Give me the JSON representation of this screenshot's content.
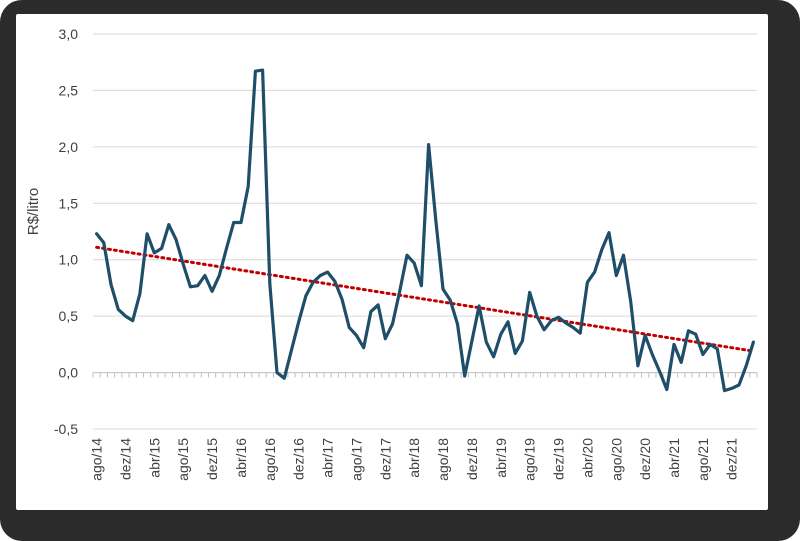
{
  "chart_data": {
    "type": "line",
    "title": "",
    "xlabel": "",
    "ylabel": "R$/litro",
    "ylim": [
      -0.5,
      3.0
    ],
    "y_ticks": [
      "3,0",
      "2,5",
      "2,0",
      "1,5",
      "1,0",
      "0,5",
      "0,0",
      "-0,5"
    ],
    "x_tick_labels": [
      "ago/14",
      "dez/14",
      "abr/15",
      "ago/15",
      "dez/15",
      "abr/16",
      "ago/16",
      "dez/16",
      "abr/17",
      "ago/17",
      "dez/17",
      "abr/18",
      "ago/18",
      "dez/18",
      "abr/19",
      "ago/19",
      "dez/19",
      "abr/20",
      "ago/20",
      "dez/20",
      "abr/21",
      "ago/21",
      "dez/21"
    ],
    "grid": "horizontal",
    "legend": "none",
    "series": [
      {
        "color": "#1f4e68",
        "values": [
          1.23,
          1.15,
          0.78,
          0.56,
          0.5,
          0.46,
          0.7,
          1.23,
          1.06,
          1.1,
          1.31,
          1.18,
          0.96,
          0.76,
          0.77,
          0.86,
          0.72,
          0.86,
          1.1,
          1.33,
          1.33,
          1.65,
          2.67,
          2.68,
          0.79,
          0.0,
          -0.05,
          0.2,
          0.45,
          0.68,
          0.8,
          0.86,
          0.89,
          0.81,
          0.65,
          0.4,
          0.33,
          0.22,
          0.54,
          0.6,
          0.3,
          0.43,
          0.72,
          1.04,
          0.97,
          0.77,
          2.02,
          1.35,
          0.74,
          0.64,
          0.43,
          -0.03,
          0.28,
          0.59,
          0.27,
          0.14,
          0.34,
          0.45,
          0.17,
          0.28,
          0.71,
          0.5,
          0.38,
          0.46,
          0.49,
          0.44,
          0.4,
          0.35,
          0.8,
          0.89,
          1.09,
          1.24,
          0.86,
          1.04,
          0.63,
          0.06,
          0.33,
          0.16,
          0.01,
          -0.15,
          0.25,
          0.09,
          0.37,
          0.34,
          0.16,
          0.25,
          0.21,
          -0.16,
          -0.14,
          -0.11,
          0.06,
          0.27
        ]
      }
    ],
    "trendline": {
      "style": "dotted",
      "color": "#c00000",
      "start": 1.11,
      "end": 0.19
    }
  }
}
